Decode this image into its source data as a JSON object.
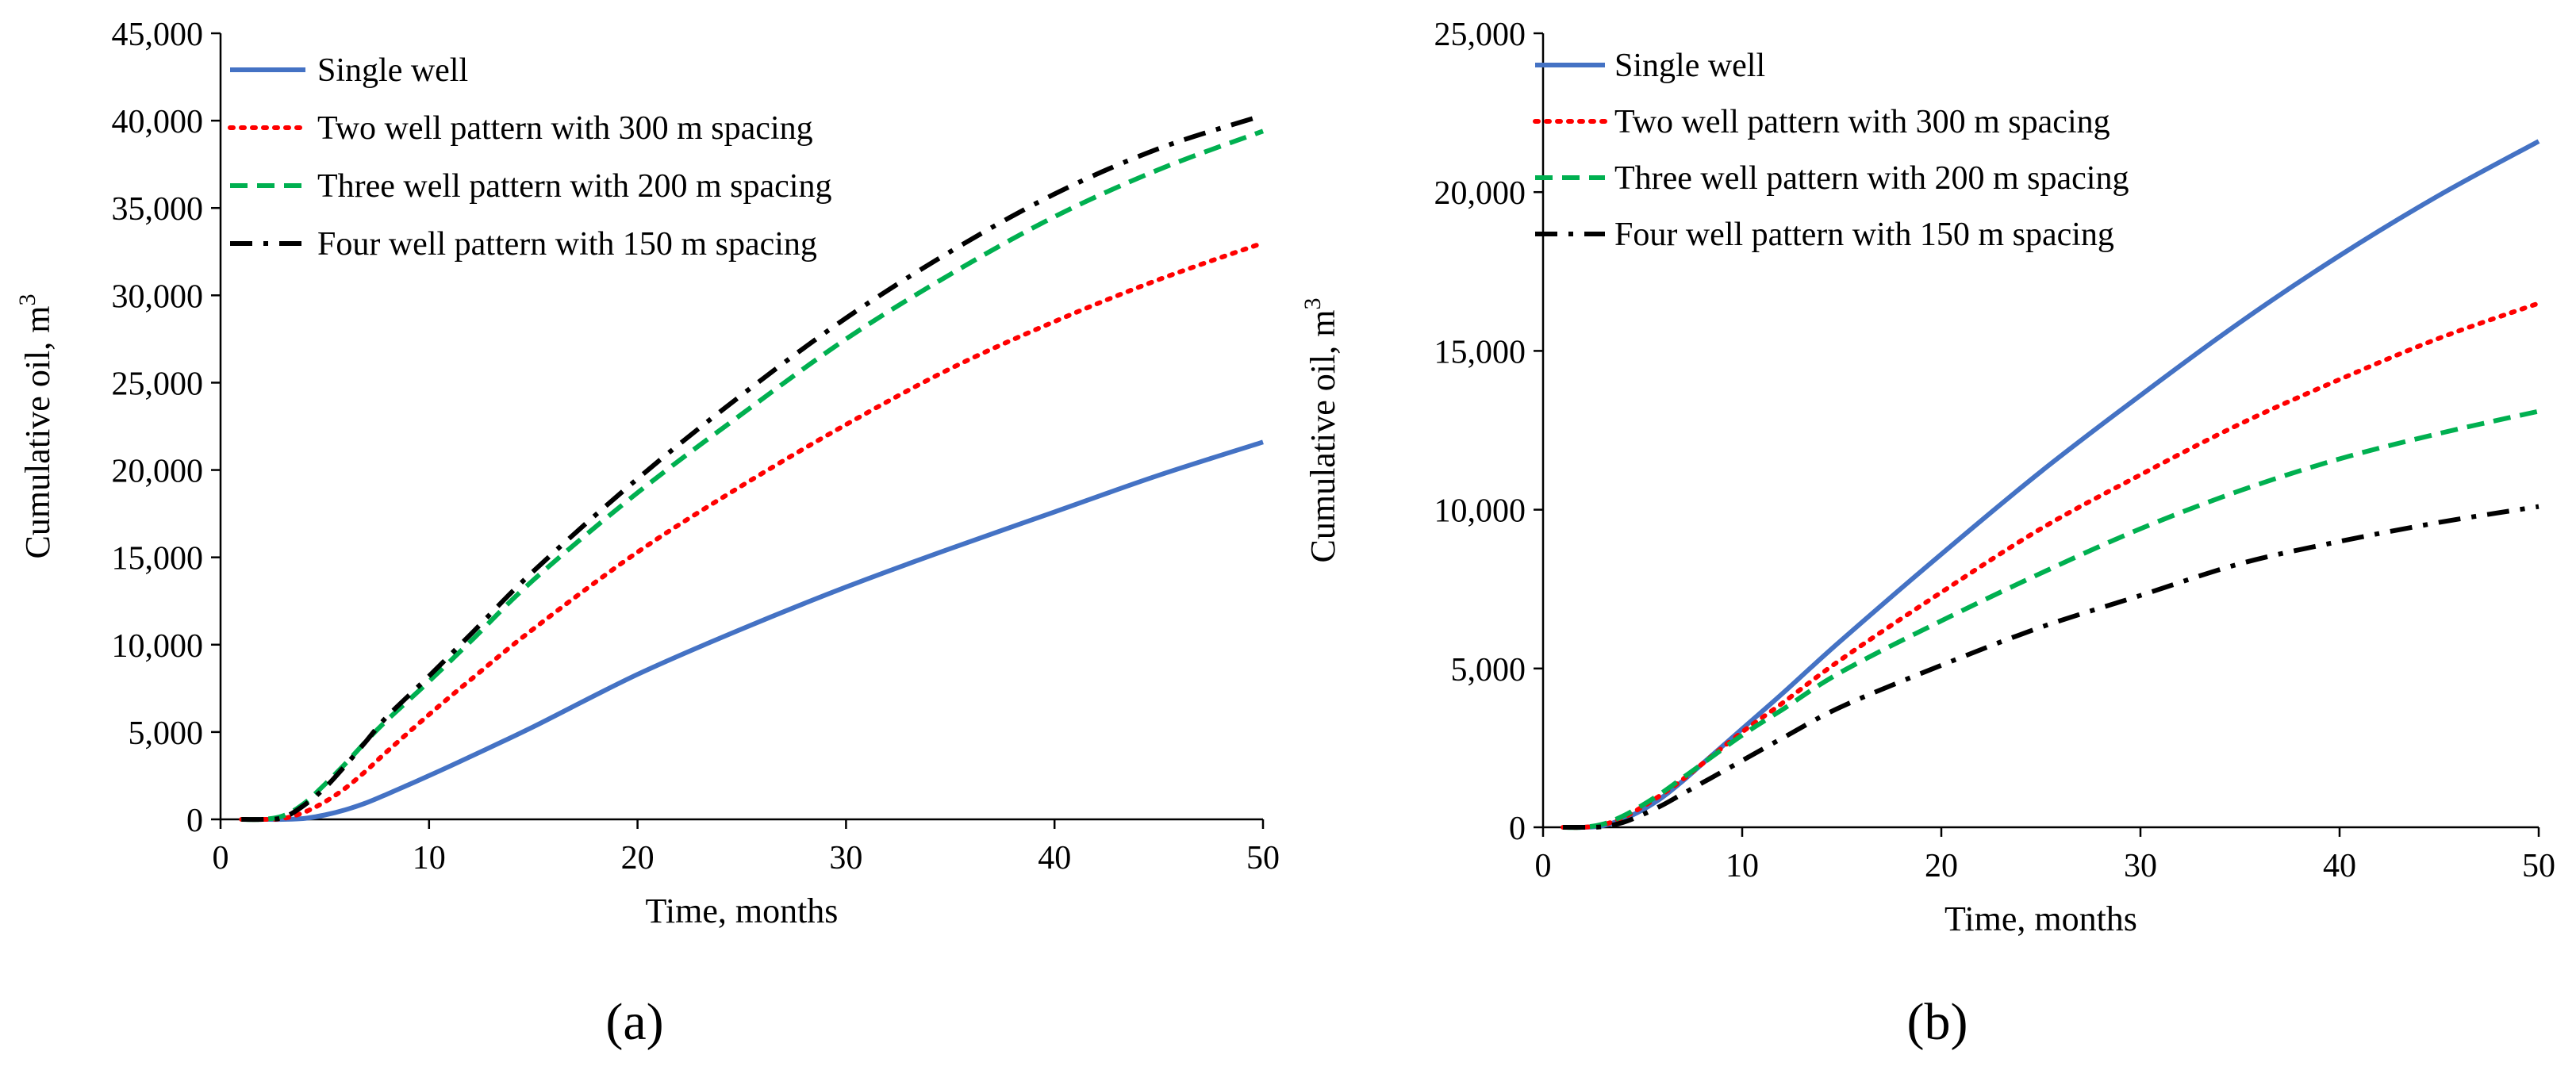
{
  "chart_data": [
    {
      "type": "line",
      "panel_label": "(a)",
      "xlabel": "Time, months",
      "ylabel": "Cumulative oil, m",
      "ylabel_superscript": "3",
      "xlim": [
        0,
        50
      ],
      "ylim": [
        0,
        45000
      ],
      "xticks": [
        0,
        10,
        20,
        30,
        40,
        50
      ],
      "xtick_labels": [
        "0",
        "10",
        "20",
        "30",
        "40",
        "50"
      ],
      "yticks": [
        0,
        5000,
        10000,
        15000,
        20000,
        25000,
        30000,
        35000,
        40000,
        45000
      ],
      "ytick_labels": [
        "0",
        "5,000",
        "10,000",
        "15,000",
        "20,000",
        "25,000",
        "30,000",
        "35,000",
        "40,000",
        "45,000"
      ],
      "grid": false,
      "legend_position": "top-left",
      "series": [
        {
          "name": "Single well",
          "color": "#4472C4",
          "style": "solid",
          "x": [
            1,
            2,
            3,
            4,
            5,
            6,
            7,
            8,
            10,
            12,
            15,
            20,
            25,
            30,
            35,
            40,
            45,
            50
          ],
          "y": [
            0,
            0,
            0,
            50,
            250,
            550,
            950,
            1450,
            2500,
            3600,
            5300,
            8300,
            10900,
            13300,
            15500,
            17600,
            19700,
            21600
          ]
        },
        {
          "name": "Two well pattern with 300 m spacing",
          "color": "#FF0000",
          "style": "dotted",
          "x": [
            1,
            2,
            3,
            4,
            5,
            6,
            7,
            8,
            10,
            12,
            15,
            20,
            25,
            30,
            35,
            40,
            45,
            50
          ],
          "y": [
            0,
            0,
            50,
            400,
            1000,
            1800,
            2800,
            3900,
            6000,
            8000,
            10900,
            15300,
            19100,
            22600,
            25800,
            28500,
            30900,
            33000
          ]
        },
        {
          "name": "Three well pattern with 200 m spacing",
          "color": "#00B050",
          "style": "dashed",
          "x": [
            1,
            2,
            3,
            4,
            5,
            6,
            7,
            8,
            10,
            12,
            15,
            20,
            25,
            30,
            35,
            40,
            45,
            50
          ],
          "y": [
            0,
            0,
            200,
            900,
            2000,
            3200,
            4500,
            5700,
            7900,
            10200,
            13700,
            18700,
            23200,
            27500,
            31200,
            34500,
            37200,
            39400
          ]
        },
        {
          "name": "Four well pattern with 150 m spacing",
          "color": "#000000",
          "style": "dashdot",
          "x": [
            1,
            2,
            3,
            4,
            5,
            6,
            7,
            8,
            10,
            12,
            15,
            20,
            25,
            30,
            35,
            40,
            45,
            50
          ],
          "y": [
            0,
            0,
            100,
            800,
            1800,
            3100,
            4500,
            5900,
            8200,
            10600,
            14200,
            19500,
            24300,
            28700,
            32500,
            35800,
            38400,
            40300
          ]
        }
      ]
    },
    {
      "type": "line",
      "panel_label": "(b)",
      "xlabel": "Time, months",
      "ylabel": "Cumulative oil, m",
      "ylabel_superscript": "3",
      "xlim": [
        0,
        50
      ],
      "ylim": [
        0,
        25000
      ],
      "xticks": [
        0,
        10,
        20,
        30,
        40,
        50
      ],
      "xtick_labels": [
        "0",
        "10",
        "20",
        "30",
        "40",
        "50"
      ],
      "yticks": [
        0,
        5000,
        10000,
        15000,
        20000,
        25000
      ],
      "ytick_labels": [
        "0",
        "5,000",
        "10,000",
        "15,000",
        "20,000",
        "25,000"
      ],
      "grid": false,
      "legend_position": "top-left",
      "series": [
        {
          "name": "Single well",
          "color": "#4472C4",
          "style": "solid",
          "x": [
            1,
            2,
            3,
            4,
            5,
            6,
            7,
            8,
            10,
            12,
            15,
            20,
            25,
            30,
            35,
            40,
            45,
            50
          ],
          "y": [
            0,
            0,
            50,
            250,
            550,
            950,
            1450,
            2000,
            3100,
            4200,
            5900,
            8600,
            11200,
            13600,
            15900,
            18000,
            19900,
            21600
          ]
        },
        {
          "name": "Two well pattern with 300 m spacing",
          "color": "#FF0000",
          "style": "dotted",
          "x": [
            1,
            2,
            3,
            4,
            5,
            6,
            7,
            8,
            10,
            12,
            15,
            20,
            25,
            30,
            35,
            40,
            45,
            50
          ],
          "y": [
            0,
            0,
            80,
            300,
            650,
            1050,
            1500,
            2000,
            3000,
            3900,
            5300,
            7400,
            9400,
            11100,
            12700,
            14100,
            15400,
            16500
          ]
        },
        {
          "name": "Three well pattern with 200 m spacing",
          "color": "#00B050",
          "style": "dashed",
          "x": [
            1,
            2,
            3,
            4,
            5,
            6,
            7,
            8,
            10,
            12,
            15,
            20,
            25,
            30,
            35,
            40,
            45,
            50
          ],
          "y": [
            0,
            0,
            100,
            350,
            700,
            1100,
            1550,
            2000,
            2900,
            3700,
            4900,
            6500,
            8000,
            9400,
            10600,
            11600,
            12400,
            13100
          ]
        },
        {
          "name": "Four well pattern with 150 m spacing",
          "color": "#000000",
          "style": "dashdot",
          "x": [
            1,
            2,
            3,
            4,
            5,
            6,
            7,
            8,
            10,
            12,
            15,
            20,
            25,
            30,
            35,
            40,
            45,
            50
          ],
          "y": [
            0,
            0,
            20,
            150,
            400,
            700,
            1050,
            1400,
            2100,
            2800,
            3800,
            5100,
            6300,
            7300,
            8300,
            9000,
            9600,
            10100
          ]
        }
      ]
    }
  ]
}
